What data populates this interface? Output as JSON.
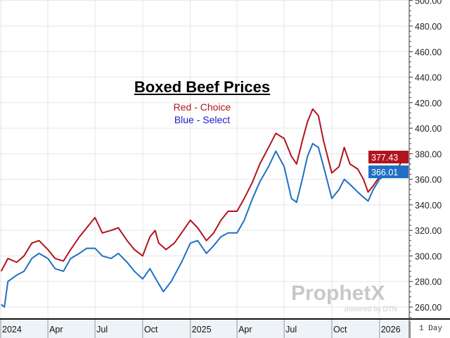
{
  "chart_data": {
    "type": "line",
    "title": "Boxed Beef Prices",
    "legend": [
      {
        "label": "Red - Choice",
        "color": "#b0141e"
      },
      {
        "label": "Blue - Select",
        "color": "#1f6fc4"
      }
    ],
    "ylim": [
      250,
      500
    ],
    "yticks": [
      "260.00",
      "280.00",
      "300.00",
      "320.00",
      "340.00",
      "360.00",
      "380.00",
      "400.00",
      "420.00",
      "440.00",
      "460.00",
      "480.00",
      "500.00"
    ],
    "ytick_values": [
      260,
      280,
      300,
      320,
      340,
      360,
      380,
      400,
      420,
      440,
      460,
      480,
      500
    ],
    "xticks": [
      {
        "label": "2024",
        "date": "2024-01-01"
      },
      {
        "label": "Apr",
        "date": "2024-04-01"
      },
      {
        "label": "Jul",
        "date": "2024-07-01"
      },
      {
        "label": "Oct",
        "date": "2024-10-01"
      },
      {
        "label": "2025",
        "date": "2025-01-01"
      },
      {
        "label": "Apr",
        "date": "2025-04-01"
      },
      {
        "label": "Jul",
        "date": "2025-07-01"
      },
      {
        "label": "Oct",
        "date": "2025-10-01"
      },
      {
        "label": "2026",
        "date": "2026-01-01"
      }
    ],
    "grid": true,
    "axis_position": "right",
    "period": "1 Day",
    "series": [
      {
        "name": "Choice",
        "color": "#b0141e",
        "last_label": "377.43",
        "x": [
          "2024-01-02",
          "2024-01-15",
          "2024-02-01",
          "2024-02-15",
          "2024-03-01",
          "2024-03-15",
          "2024-04-01",
          "2024-04-15",
          "2024-05-01",
          "2024-05-15",
          "2024-06-01",
          "2024-06-15",
          "2024-07-01",
          "2024-07-15",
          "2024-08-01",
          "2024-08-15",
          "2024-09-01",
          "2024-09-15",
          "2024-10-01",
          "2024-10-15",
          "2024-10-25",
          "2024-11-01",
          "2024-11-15",
          "2024-12-01",
          "2024-12-15",
          "2025-01-01",
          "2025-01-15",
          "2025-02-01",
          "2025-02-15",
          "2025-03-01",
          "2025-03-15",
          "2025-04-01",
          "2025-04-15",
          "2025-05-01",
          "2025-05-15",
          "2025-06-01",
          "2025-06-15",
          "2025-07-01",
          "2025-07-15",
          "2025-07-25",
          "2025-08-05",
          "2025-08-15",
          "2025-08-25",
          "2025-09-05",
          "2025-09-15",
          "2025-10-01",
          "2025-10-15",
          "2025-10-25",
          "2025-11-05",
          "2025-11-20",
          "2025-12-01",
          "2025-12-10",
          "2025-12-20",
          "2026-01-01",
          "2026-01-15",
          "2026-02-01",
          "2026-02-18"
        ],
        "y": [
          288,
          298,
          295,
          300,
          310,
          312,
          305,
          298,
          296,
          305,
          315,
          322,
          330,
          318,
          320,
          322,
          312,
          305,
          300,
          315,
          320,
          310,
          305,
          310,
          318,
          328,
          322,
          312,
          318,
          328,
          335,
          335,
          345,
          358,
          372,
          385,
          396,
          392,
          378,
          372,
          390,
          405,
          415,
          410,
          390,
          365,
          370,
          385,
          372,
          368,
          360,
          350,
          355,
          362,
          368,
          366,
          377.43
        ]
      },
      {
        "name": "Select",
        "color": "#1f6fc4",
        "last_label": "366.01",
        "x": [
          "2024-01-02",
          "2024-01-08",
          "2024-01-15",
          "2024-02-01",
          "2024-02-15",
          "2024-03-01",
          "2024-03-15",
          "2024-04-01",
          "2024-04-15",
          "2024-05-01",
          "2024-05-15",
          "2024-06-01",
          "2024-06-15",
          "2024-07-01",
          "2024-07-15",
          "2024-08-01",
          "2024-08-15",
          "2024-09-01",
          "2024-09-15",
          "2024-10-01",
          "2024-10-15",
          "2024-11-01",
          "2024-11-10",
          "2024-11-25",
          "2024-12-15",
          "2025-01-01",
          "2025-01-15",
          "2025-02-01",
          "2025-02-15",
          "2025-03-01",
          "2025-03-15",
          "2025-04-01",
          "2025-04-15",
          "2025-05-01",
          "2025-05-15",
          "2025-06-01",
          "2025-06-15",
          "2025-07-01",
          "2025-07-15",
          "2025-07-25",
          "2025-08-05",
          "2025-08-15",
          "2025-08-25",
          "2025-09-05",
          "2025-09-15",
          "2025-10-01",
          "2025-10-15",
          "2025-10-25",
          "2025-11-05",
          "2025-11-20",
          "2025-12-01",
          "2025-12-10",
          "2025-12-20",
          "2026-01-01",
          "2026-01-15",
          "2026-02-01",
          "2026-02-18"
        ],
        "y": [
          262,
          260,
          280,
          285,
          288,
          298,
          302,
          298,
          290,
          288,
          298,
          302,
          306,
          306,
          300,
          298,
          302,
          295,
          288,
          282,
          290,
          278,
          272,
          280,
          295,
          310,
          312,
          302,
          308,
          315,
          318,
          318,
          328,
          345,
          358,
          370,
          382,
          370,
          345,
          342,
          360,
          378,
          388,
          385,
          370,
          345,
          352,
          360,
          356,
          350,
          346,
          343,
          352,
          360,
          364,
          362,
          366.01
        ]
      }
    ]
  },
  "watermark": {
    "brand": "ProphetX",
    "sub": "powered by DTN"
  }
}
